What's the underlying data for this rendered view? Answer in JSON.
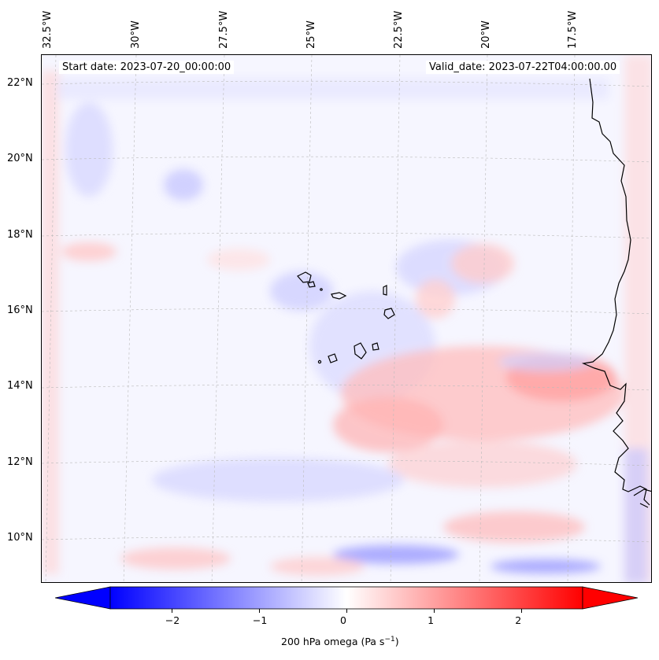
{
  "map": {
    "start_date_text": "Start date: 2023-07-20_00:00:00",
    "valid_date_text": "Valid_date: 2023-07-22T04:00:00.00",
    "lon_labels": [
      "32.5°W",
      "30°W",
      "27.5°W",
      "25°W",
      "22.5°W",
      "20°W",
      "17.5°W"
    ],
    "lat_labels": [
      "22°N",
      "20°N",
      "18°N",
      "16°N",
      "14°N",
      "12°N",
      "10°N"
    ],
    "field": "200 hPa omega",
    "colormap": "bwr"
  },
  "colorbar": {
    "label": "200 hPa omega (Pa s",
    "label_exp": "−1",
    "label_close": ")",
    "ticks": [
      "−2",
      "−1",
      "0",
      "1",
      "2"
    ],
    "range": [
      -2.7,
      2.7
    ],
    "min_color": "#0000ff",
    "mid_color": "#ffffff",
    "max_color": "#ff0000"
  }
}
